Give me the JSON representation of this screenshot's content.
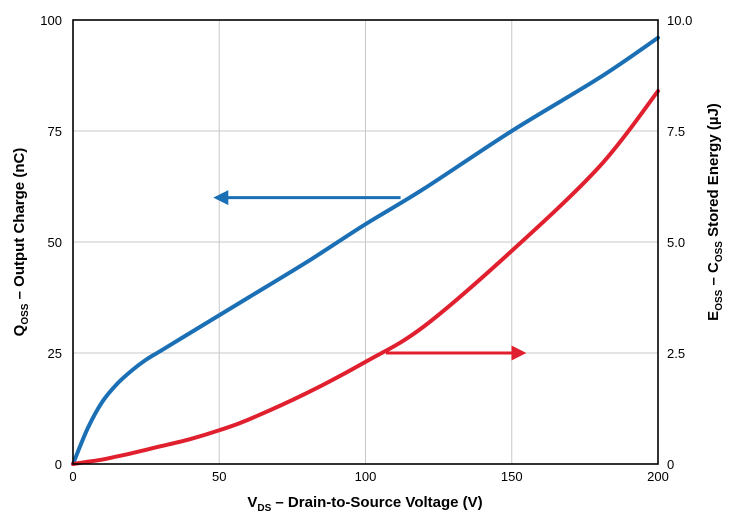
{
  "chart_data": {
    "type": "line",
    "title": "",
    "x": [
      0,
      5,
      10,
      15,
      20,
      25,
      30,
      40,
      50,
      60,
      80,
      100,
      120,
      150,
      180,
      200
    ],
    "xlim": [
      0,
      200
    ],
    "xticks": [
      "0",
      "50",
      "100",
      "150",
      "200"
    ],
    "xticks_values": [
      0,
      50,
      100,
      150,
      200
    ],
    "xlabel": {
      "main": "V",
      "sub": "DS",
      "rest": " – Drain-to-Source Voltage (V)"
    },
    "ylim_left": [
      0,
      100
    ],
    "yticks_left": [
      "0",
      "25",
      "50",
      "75",
      "100"
    ],
    "yticks_left_values": [
      0,
      25,
      50,
      75,
      100
    ],
    "ylabel_left": {
      "main": "Q",
      "sub": "OSS",
      "rest": " – Output Charge (nC)"
    },
    "ylim_right": [
      0,
      10
    ],
    "yticks_right": [
      "0",
      "2.5",
      "5.0",
      "7.5",
      "10.0"
    ],
    "yticks_right_values": [
      0,
      2.5,
      5,
      7.5,
      10
    ],
    "ylabel_right": {
      "main": "E",
      "sub": "OSS",
      "rest": " – C",
      "sub2": "OSS",
      "rest2": " Stored Energy (µJ)"
    },
    "grid": true,
    "series": [
      {
        "axis": "left",
        "color": "#1a6fb5",
        "values": [
          0,
          8,
          14,
          18,
          21,
          23.5,
          25.5,
          29.5,
          33.5,
          37.5,
          45.5,
          54,
          62,
          75,
          87,
          96
        ]
      },
      {
        "axis": "right",
        "color": "#e0202e",
        "values": [
          0,
          0.05,
          0.1,
          0.17,
          0.24,
          0.32,
          0.4,
          0.56,
          0.76,
          1.0,
          1.6,
          2.3,
          3.1,
          4.8,
          6.7,
          8.4
        ]
      }
    ],
    "annotations": [
      {
        "type": "arrow",
        "color": "#1a6fb5",
        "axis": "left",
        "from": [
          112,
          60
        ],
        "to": [
          49,
          60
        ]
      },
      {
        "type": "arrow",
        "color": "#e0202e",
        "axis": "right",
        "from": [
          107,
          2.5
        ],
        "to": [
          154,
          2.5
        ]
      }
    ]
  }
}
